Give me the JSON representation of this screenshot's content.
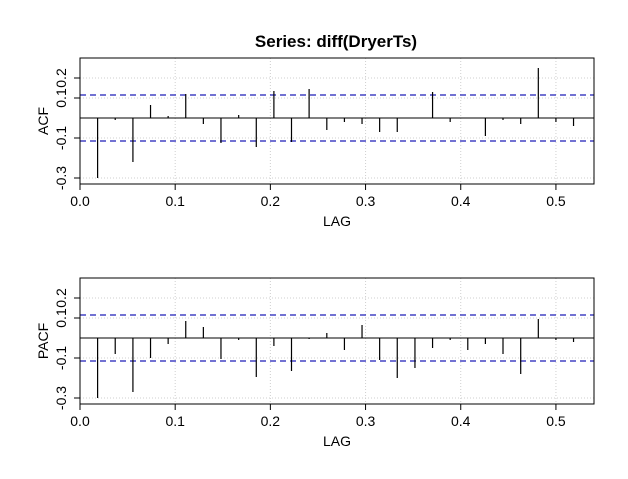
{
  "chart_data": [
    {
      "type": "bar",
      "title": "Series:  diff(DryerTs)",
      "xlabel": "LAG",
      "ylabel": "ACF",
      "xlim": [
        0.0,
        0.54
      ],
      "ylim": [
        -0.33,
        0.3
      ],
      "xticks": [
        "0.0",
        "0.1",
        "0.2",
        "0.3",
        "0.4",
        "0.5"
      ],
      "yticks": [
        "-0.3",
        "-0.1",
        "0.1",
        "0.2"
      ],
      "ci_bounds": [
        0.115,
        -0.115
      ],
      "grid": true,
      "x": [
        0.0185,
        0.037,
        0.0556,
        0.0741,
        0.0926,
        0.1111,
        0.1296,
        0.1481,
        0.1667,
        0.1852,
        0.2037,
        0.2222,
        0.2407,
        0.2593,
        0.2778,
        0.2963,
        0.3148,
        0.3333,
        0.3519,
        0.3704,
        0.3889,
        0.4074,
        0.4259,
        0.4444,
        0.463,
        0.4815,
        0.5,
        0.5185
      ],
      "values": [
        -0.3,
        -0.01,
        -0.22,
        0.065,
        0.01,
        0.12,
        -0.03,
        -0.125,
        0.015,
        -0.145,
        0.135,
        -0.12,
        0.145,
        -0.06,
        -0.02,
        -0.03,
        -0.07,
        -0.07,
        0.0,
        0.13,
        -0.02,
        0.0,
        -0.09,
        -0.01,
        -0.03,
        0.25,
        -0.02,
        -0.04
      ]
    },
    {
      "type": "bar",
      "title": "",
      "xlabel": "LAG",
      "ylabel": "PACF",
      "xlim": [
        0.0,
        0.54
      ],
      "ylim": [
        -0.33,
        0.3
      ],
      "xticks": [
        "0.0",
        "0.1",
        "0.2",
        "0.3",
        "0.4",
        "0.5"
      ],
      "yticks": [
        "-0.3",
        "-0.1",
        "0.1",
        "0.2"
      ],
      "ci_bounds": [
        0.115,
        -0.115
      ],
      "grid": true,
      "x": [
        0.0185,
        0.037,
        0.0556,
        0.0741,
        0.0926,
        0.1111,
        0.1296,
        0.1481,
        0.1667,
        0.1852,
        0.2037,
        0.2222,
        0.2407,
        0.2593,
        0.2778,
        0.2963,
        0.3148,
        0.3333,
        0.3519,
        0.3704,
        0.3889,
        0.4074,
        0.4259,
        0.4444,
        0.463,
        0.4815,
        0.5,
        0.5185
      ],
      "values": [
        -0.3,
        -0.08,
        -0.27,
        -0.1,
        -0.03,
        0.085,
        0.055,
        -0.105,
        -0.01,
        -0.195,
        -0.04,
        -0.165,
        -0.005,
        0.025,
        -0.06,
        0.065,
        -0.11,
        -0.2,
        -0.15,
        -0.05,
        -0.01,
        -0.06,
        -0.03,
        -0.08,
        -0.18,
        0.095,
        -0.01,
        -0.02
      ]
    }
  ]
}
